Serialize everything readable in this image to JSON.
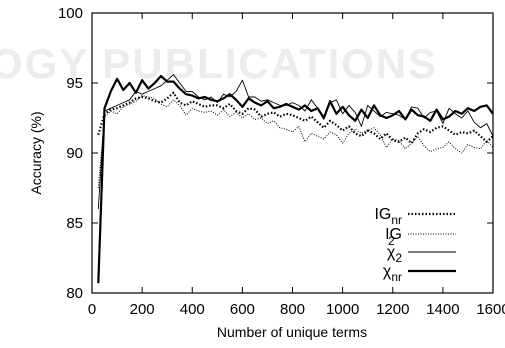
{
  "watermark": "OGY PUBLICATIONS",
  "chart_data": {
    "type": "line",
    "xlabel": "Number of unique terms",
    "ylabel": "Accuracy (%)",
    "xlim": [
      0,
      1600
    ],
    "ylim": [
      80,
      100
    ],
    "xticks": [
      0,
      200,
      400,
      600,
      800,
      1000,
      1200,
      1400,
      1600
    ],
    "yticks": [
      80,
      85,
      90,
      95,
      100
    ],
    "grid": false,
    "legend_position": "bottom-right",
    "x": [
      25,
      50,
      75,
      100,
      125,
      150,
      175,
      200,
      225,
      250,
      275,
      300,
      325,
      350,
      375,
      400,
      425,
      450,
      475,
      500,
      525,
      550,
      575,
      600,
      625,
      650,
      675,
      700,
      725,
      750,
      775,
      800,
      825,
      850,
      875,
      900,
      925,
      950,
      975,
      1000,
      1025,
      1050,
      1075,
      1100,
      1125,
      1150,
      1175,
      1200,
      1225,
      1250,
      1275,
      1300,
      1325,
      1350,
      1375,
      1400,
      1425,
      1450,
      1475,
      1500,
      1525,
      1550,
      1575,
      1600
    ],
    "series": [
      {
        "name": "IG",
        "name_sub": "nr",
        "style": "dotted-bold",
        "values": [
          91.3,
          92.8,
          93.1,
          93.2,
          93.4,
          93.6,
          93.9,
          94.0,
          93.9,
          93.7,
          93.6,
          93.9,
          94.3,
          93.6,
          93.4,
          93.7,
          93.5,
          93.3,
          93.4,
          93.4,
          93.2,
          93.5,
          93.0,
          92.8,
          93.2,
          93.1,
          92.6,
          92.8,
          92.9,
          92.6,
          92.8,
          92.7,
          92.5,
          92.3,
          92.6,
          92.2,
          91.8,
          92.3,
          92.0,
          91.6,
          91.9,
          91.4,
          91.2,
          91.6,
          91.4,
          91.0,
          91.4,
          90.9,
          90.8,
          91.1,
          90.7,
          91.4,
          91.7,
          91.5,
          91.8,
          91.9,
          91.6,
          91.3,
          91.5,
          91.4,
          91.6,
          91.2,
          90.8,
          91.2
        ]
      },
      {
        "name": "IG",
        "name_sub": "",
        "style": "dotted-thin",
        "values": [
          87.5,
          92.6,
          93.0,
          92.8,
          93.3,
          93.5,
          93.7,
          94.1,
          94.0,
          93.9,
          93.5,
          93.3,
          93.8,
          93.4,
          92.7,
          93.2,
          93.0,
          92.9,
          93.0,
          92.7,
          93.1,
          92.6,
          92.9,
          92.5,
          92.8,
          92.4,
          92.5,
          92.1,
          92.3,
          91.8,
          91.7,
          91.5,
          91.9,
          90.8,
          91.4,
          91.2,
          91.0,
          91.5,
          91.3,
          90.7,
          91.4,
          91.7,
          91.4,
          91.6,
          91.8,
          91.3,
          90.4,
          91.0,
          90.9,
          90.3,
          90.7,
          91.2,
          90.5,
          90.1,
          90.3,
          90.4,
          90.8,
          90.3,
          90.0,
          90.6,
          90.4,
          90.3,
          90.9,
          90.4
        ]
      },
      {
        "name": "χ",
        "name_sub": "2",
        "name_sup": "2",
        "style": "solid-thin",
        "values": [
          86.0,
          93.0,
          93.2,
          93.4,
          93.6,
          93.8,
          94.4,
          94.2,
          94.4,
          94.6,
          94.8,
          95.2,
          95.6,
          95.0,
          94.4,
          94.4,
          94.0,
          93.8,
          94.0,
          93.6,
          94.2,
          94.0,
          94.4,
          95.2,
          94.0,
          94.0,
          93.7,
          93.8,
          93.6,
          93.4,
          93.4,
          93.6,
          93.4,
          93.0,
          93.8,
          93.2,
          92.4,
          93.6,
          93.8,
          92.8,
          93.4,
          92.9,
          91.9,
          93.4,
          93.0,
          92.6,
          92.9,
          92.8,
          92.7,
          92.4,
          93.3,
          93.2,
          92.5,
          92.9,
          93.0,
          92.1,
          93.2,
          92.8,
          92.5,
          93.0,
          92.2,
          91.8,
          92.1,
          91.2
        ]
      },
      {
        "name": "χ",
        "name_sub": "nr",
        "style": "solid-bold",
        "values": [
          80.7,
          93.2,
          94.4,
          95.3,
          94.5,
          95.0,
          94.3,
          95.2,
          94.6,
          95.0,
          95.5,
          95.1,
          95.1,
          94.6,
          94.2,
          94.1,
          93.9,
          94.0,
          93.8,
          93.7,
          93.9,
          94.2,
          93.8,
          93.3,
          93.9,
          93.6,
          93.4,
          93.7,
          93.2,
          93.3,
          93.5,
          93.3,
          93.1,
          93.4,
          93.0,
          93.2,
          92.5,
          93.7,
          92.8,
          93.3,
          92.7,
          92.3,
          93.1,
          92.5,
          93.4,
          92.7,
          92.5,
          92.7,
          93.0,
          92.4,
          93.1,
          92.7,
          92.6,
          92.3,
          93.1,
          92.4,
          92.6,
          93.0,
          92.8,
          93.2,
          93.0,
          93.3,
          93.4,
          92.8
        ]
      }
    ]
  }
}
